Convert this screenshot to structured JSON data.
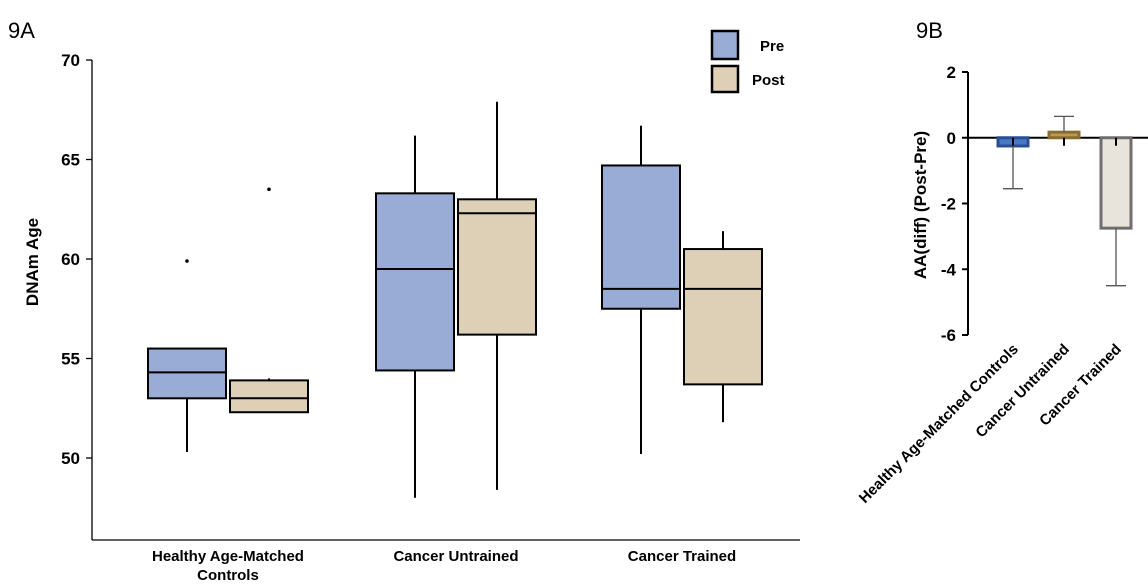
{
  "chart_data": [
    {
      "panel": "9A",
      "type": "box",
      "ylabel": "DNAm Age",
      "xlabel": "",
      "ylim": [
        45.5,
        70
      ],
      "yticks": [
        50,
        55,
        60,
        65,
        70
      ],
      "categories": [
        "Healthy Age-Matched Controls",
        "Cancer Untrained",
        "Cancer Trained"
      ],
      "category_lines": [
        [
          "Healthy Age-Matched",
          "Controls"
        ],
        [
          "Cancer Untrained"
        ],
        [
          "Cancer Trained"
        ]
      ],
      "legend": {
        "position": "top-right",
        "entries": [
          "Pre",
          "Post"
        ]
      },
      "colors": {
        "Pre": "#98acd6",
        "Post": "#ddd0b6"
      },
      "series": [
        {
          "name": "Pre",
          "boxes": [
            {
              "whisker_low": 50.3,
              "q1": 53.0,
              "median": 54.3,
              "q3": 55.5,
              "whisker_high": 55.5,
              "outliers": [
                59.9
              ]
            },
            {
              "whisker_low": 48.0,
              "q1": 54.4,
              "median": 59.5,
              "q3": 63.3,
              "whisker_high": 66.2,
              "outliers": []
            },
            {
              "whisker_low": 50.2,
              "q1": 57.5,
              "median": 58.5,
              "q3": 64.7,
              "whisker_high": 66.7,
              "outliers": []
            }
          ]
        },
        {
          "name": "Post",
          "boxes": [
            {
              "whisker_low": 52.3,
              "q1": 52.3,
              "median": 53.0,
              "q3": 53.9,
              "whisker_high": 54.0,
              "outliers": [
                63.5
              ]
            },
            {
              "whisker_low": 48.4,
              "q1": 56.2,
              "median": 62.3,
              "q3": 63.0,
              "whisker_high": 67.9,
              "outliers": []
            },
            {
              "whisker_low": 51.8,
              "q1": 53.7,
              "median": 58.5,
              "q3": 60.5,
              "whisker_high": 61.4,
              "outliers": []
            }
          ]
        }
      ]
    },
    {
      "panel": "9B",
      "type": "bar",
      "ylabel": "AA(diff) (Post-Pre)",
      "xlabel": "",
      "ylim": [
        -6,
        2
      ],
      "yticks": [
        2,
        0,
        -2,
        -4,
        -6
      ],
      "categories": [
        "Healthy Age-Matched Controls",
        "Cancer Untrained",
        "Cancer Trained"
      ],
      "values": [
        -0.25,
        0.17,
        -2.75
      ],
      "error_bars": [
        {
          "direction": "down",
          "value": -1.55
        },
        {
          "direction": "up",
          "value": 0.65
        },
        {
          "direction": "down",
          "value": -4.5
        }
      ],
      "colors": {
        "fills": [
          "#4a79c4",
          "#b89a5a",
          "#e8e4dc"
        ],
        "edges": [
          "#2a4f91",
          "#8a6d2e",
          "#6e6e6e"
        ]
      }
    }
  ]
}
